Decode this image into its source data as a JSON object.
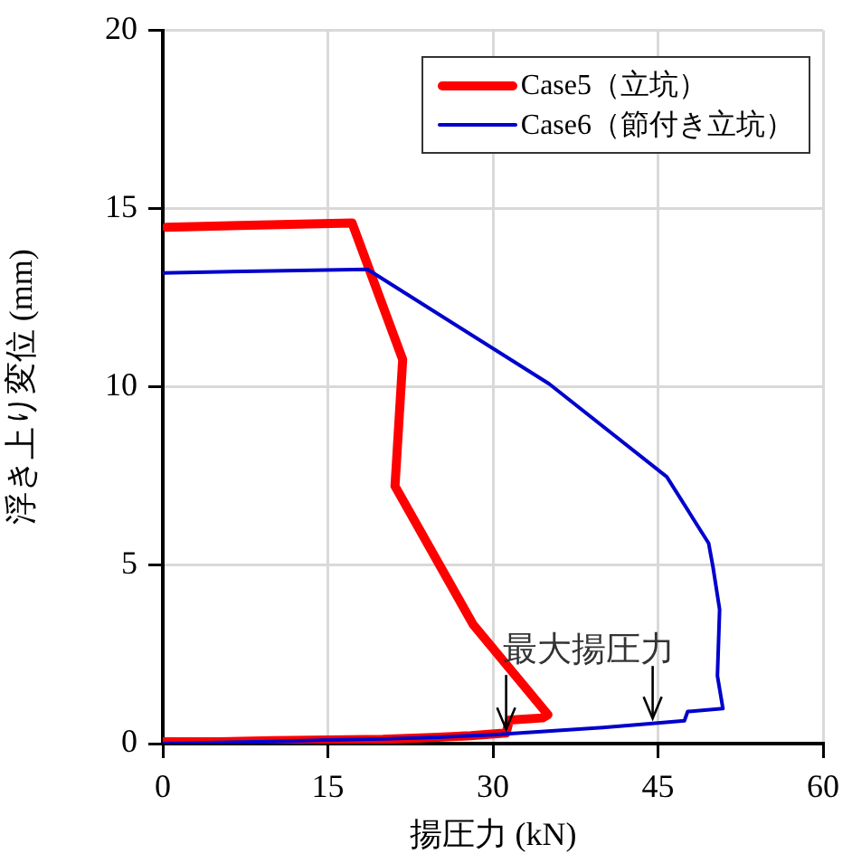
{
  "chart_data": {
    "type": "line",
    "xlabel": "揚圧力 (kN)",
    "ylabel": "浮き上り変位 (mm)",
    "xlim": [
      0,
      60
    ],
    "xticks": [
      0,
      15,
      30,
      45,
      60
    ],
    "ylim": [
      0,
      20
    ],
    "yticks": [
      0,
      5,
      10,
      15,
      20
    ],
    "grid": true,
    "legend": "top right",
    "marker": "none",
    "line_style": "solid",
    "series": [
      {
        "name": "Case5（立坑）",
        "color": "#ff0000",
        "x": [
          0,
          5,
          10,
          15,
          20,
          25,
          28,
          31.2,
          31.5,
          34.5,
          35,
          28.2,
          21.1,
          21.8,
          17.2,
          0.3
        ],
        "values": [
          0.05,
          0.05,
          0.08,
          0.1,
          0.12,
          0.18,
          0.22,
          0.3,
          0.66,
          0.72,
          0.81,
          3.34,
          7.22,
          10.77,
          14.6,
          14.48
        ]
      },
      {
        "name": "Case6（節付き立坑）",
        "color": "#0000cc",
        "x": [
          0,
          5,
          10,
          15,
          20,
          25,
          30,
          35,
          40,
          44,
          47.4,
          47.7,
          50.9,
          50.4,
          50.6,
          50,
          49.6,
          45.8,
          35.1,
          18.6,
          0
        ],
        "values": [
          0,
          0.03,
          0.06,
          0.1,
          0.13,
          0.18,
          0.25,
          0.35,
          0.45,
          0.55,
          0.64,
          0.9,
          0.98,
          1.9,
          3.76,
          4.95,
          5.62,
          7.48,
          10.09,
          13.3,
          13.2
        ]
      }
    ],
    "annotations": [
      {
        "text": "最大揚圧力",
        "x": 31.2,
        "y": 0.3
      }
    ]
  }
}
